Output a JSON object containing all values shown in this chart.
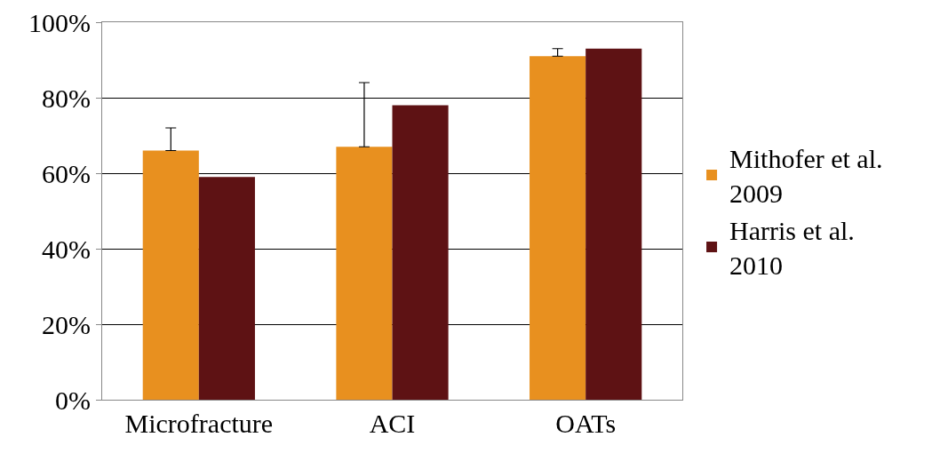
{
  "chart_data": {
    "type": "bar",
    "categories": [
      "Microfracture",
      "ACI",
      "OATs"
    ],
    "series": [
      {
        "name": "Mithofer et al.\n2009",
        "color": "#e8901f",
        "values": [
          66,
          67,
          91
        ],
        "errors": [
          [
            66,
            72
          ],
          [
            67,
            84
          ],
          [
            91,
            93
          ]
        ]
      },
      {
        "name": "Harris et al.\n2010",
        "color": "#5e1214",
        "values": [
          59,
          78,
          93
        ]
      }
    ],
    "ylim": [
      0,
      100
    ],
    "yticks": [
      {
        "value": 0,
        "label": "0%"
      },
      {
        "value": 20,
        "label": "20%"
      },
      {
        "value": 40,
        "label": "40%"
      },
      {
        "value": 60,
        "label": "60%"
      },
      {
        "value": 80,
        "label": "80%"
      },
      {
        "value": 100,
        "label": "100%"
      }
    ],
    "grid": "y",
    "legend": "right"
  }
}
